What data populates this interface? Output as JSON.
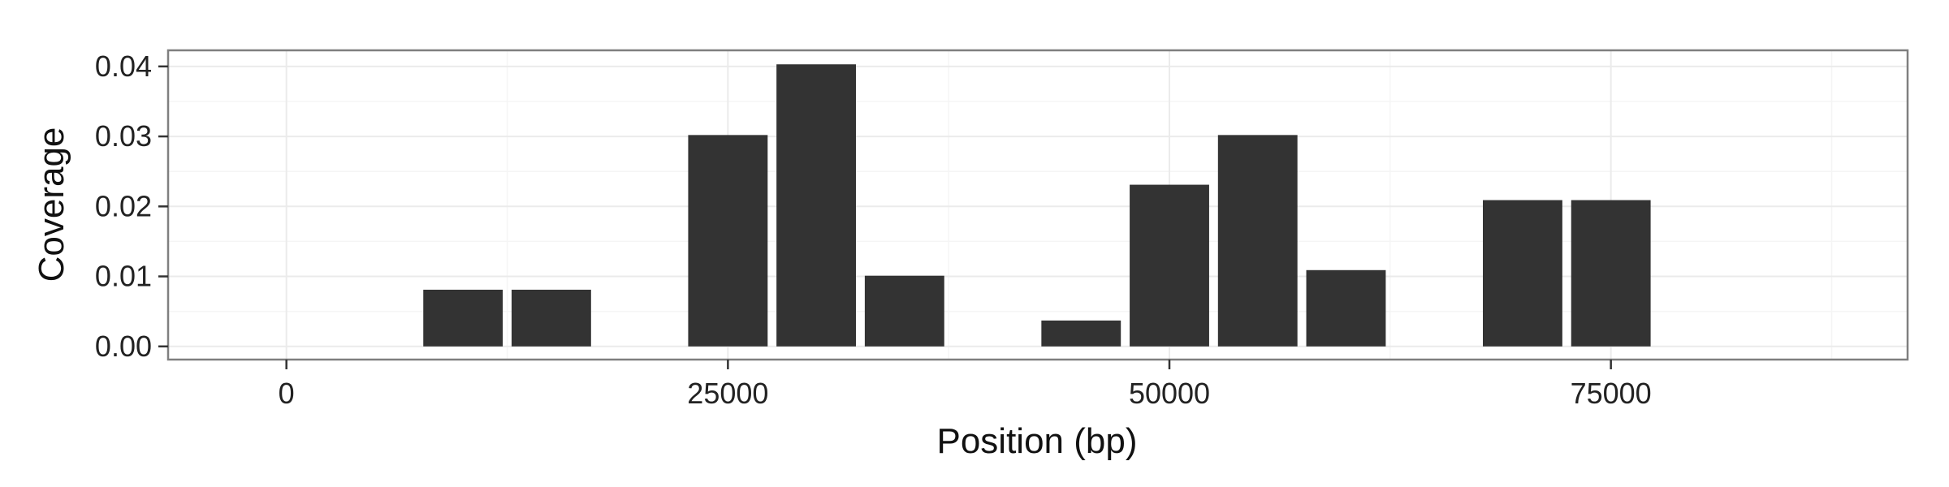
{
  "chart_data": {
    "type": "bar",
    "title": "",
    "xlabel": "Position (bp)",
    "ylabel": "Coverage",
    "x": [
      10000,
      15000,
      25000,
      30000,
      35000,
      45000,
      50000,
      55000,
      60000,
      70000,
      75000
    ],
    "values": [
      0.0081,
      0.0081,
      0.0302,
      0.0403,
      0.0101,
      0.0037,
      0.0231,
      0.0302,
      0.0109,
      0.0209,
      0.0209
    ],
    "bar_width": 4500,
    "xlim": [
      -6700,
      91800
    ],
    "ylim": [
      -0.00188,
      0.0423
    ],
    "x_ticks": [
      0,
      25000,
      50000,
      75000
    ],
    "x_tick_labels": [
      "0",
      "25000",
      "50000",
      "75000"
    ],
    "y_ticks": [
      0.0,
      0.01,
      0.02,
      0.03,
      0.04
    ],
    "y_tick_labels": [
      "0.00",
      "0.01",
      "0.02",
      "0.03",
      "0.04"
    ],
    "grid": true,
    "legend": "none",
    "colors": {
      "bar": "#333333",
      "panel_border": "#7f7f7f",
      "grid_major": "#ebebeb",
      "grid_minor": "#f5f5f5",
      "tick": "#333333"
    }
  }
}
